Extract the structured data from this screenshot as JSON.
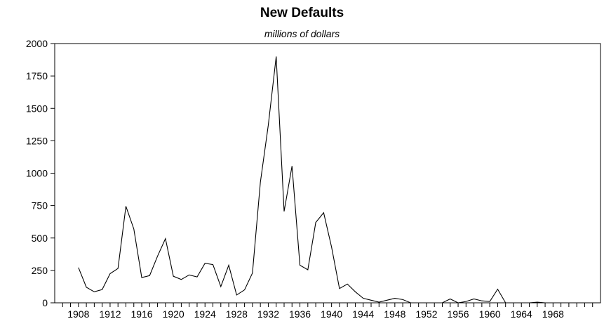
{
  "chart_data": {
    "type": "line",
    "title": "New Defaults",
    "subtitle": "millions of dollars",
    "xlabel": "",
    "ylabel": "",
    "xlim": [
      1905,
      1974
    ],
    "ylim": [
      0,
      2000
    ],
    "yticks": [
      0,
      250,
      500,
      750,
      1000,
      1250,
      1500,
      1750,
      2000
    ],
    "xticks": [
      1908,
      1912,
      1916,
      1920,
      1924,
      1928,
      1932,
      1936,
      1940,
      1944,
      1948,
      1952,
      1956,
      1960,
      1964,
      1968
    ],
    "grid": false,
    "series": [
      {
        "x": [
          1908,
          1909,
          1910,
          1911,
          1912,
          1913,
          1914,
          1915,
          1916,
          1917,
          1918,
          1919,
          1920,
          1921,
          1922,
          1923,
          1924,
          1925,
          1926,
          1927,
          1928,
          1929,
          1930,
          1931,
          1932,
          1933,
          1934,
          1935,
          1936,
          1937,
          1938,
          1939,
          1940,
          1941,
          1942,
          1943,
          1944,
          1945,
          1946,
          1947,
          1948,
          1949,
          1950,
          1951,
          1952,
          1953,
          1954,
          1955,
          1956,
          1957,
          1958,
          1959,
          1960,
          1961,
          1962,
          1963,
          1964,
          1965,
          1966,
          1967
        ],
        "values": [
          272,
          120,
          85,
          102,
          225,
          265,
          745,
          570,
          195,
          210,
          360,
          495,
          205,
          180,
          215,
          200,
          305,
          295,
          125,
          290,
          60,
          100,
          230,
          930,
          1370,
          1900,
          705,
          1055,
          290,
          255,
          620,
          695,
          430,
          110,
          145,
          85,
          35,
          20,
          5,
          20,
          35,
          25,
          0,
          0,
          0,
          0,
          0,
          30,
          0,
          10,
          30,
          15,
          10,
          105,
          0,
          0,
          0,
          0,
          5,
          0
        ]
      }
    ]
  }
}
